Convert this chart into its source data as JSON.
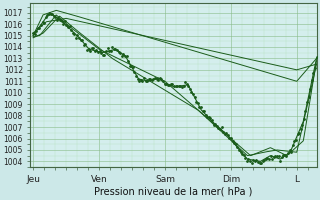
{
  "xlabel": "Pression niveau de la mer( hPa )",
  "bg_color": "#cce8e8",
  "plot_bg_color": "#d4eeed",
  "grid_major_color": "#88bb88",
  "grid_minor_color": "#aaddaa",
  "line_color": "#1a5c1a",
  "ylim": [
    1003.5,
    1017.8
  ],
  "yticks": [
    1004,
    1005,
    1006,
    1007,
    1008,
    1009,
    1010,
    1011,
    1012,
    1013,
    1014,
    1015,
    1016,
    1017
  ],
  "xlim": [
    -0.04,
    4.3
  ],
  "x_day_labels": [
    "Jeu",
    "Ven",
    "Sam",
    "Dim",
    "L"
  ],
  "x_day_positions": [
    0,
    1,
    2,
    3,
    4
  ]
}
